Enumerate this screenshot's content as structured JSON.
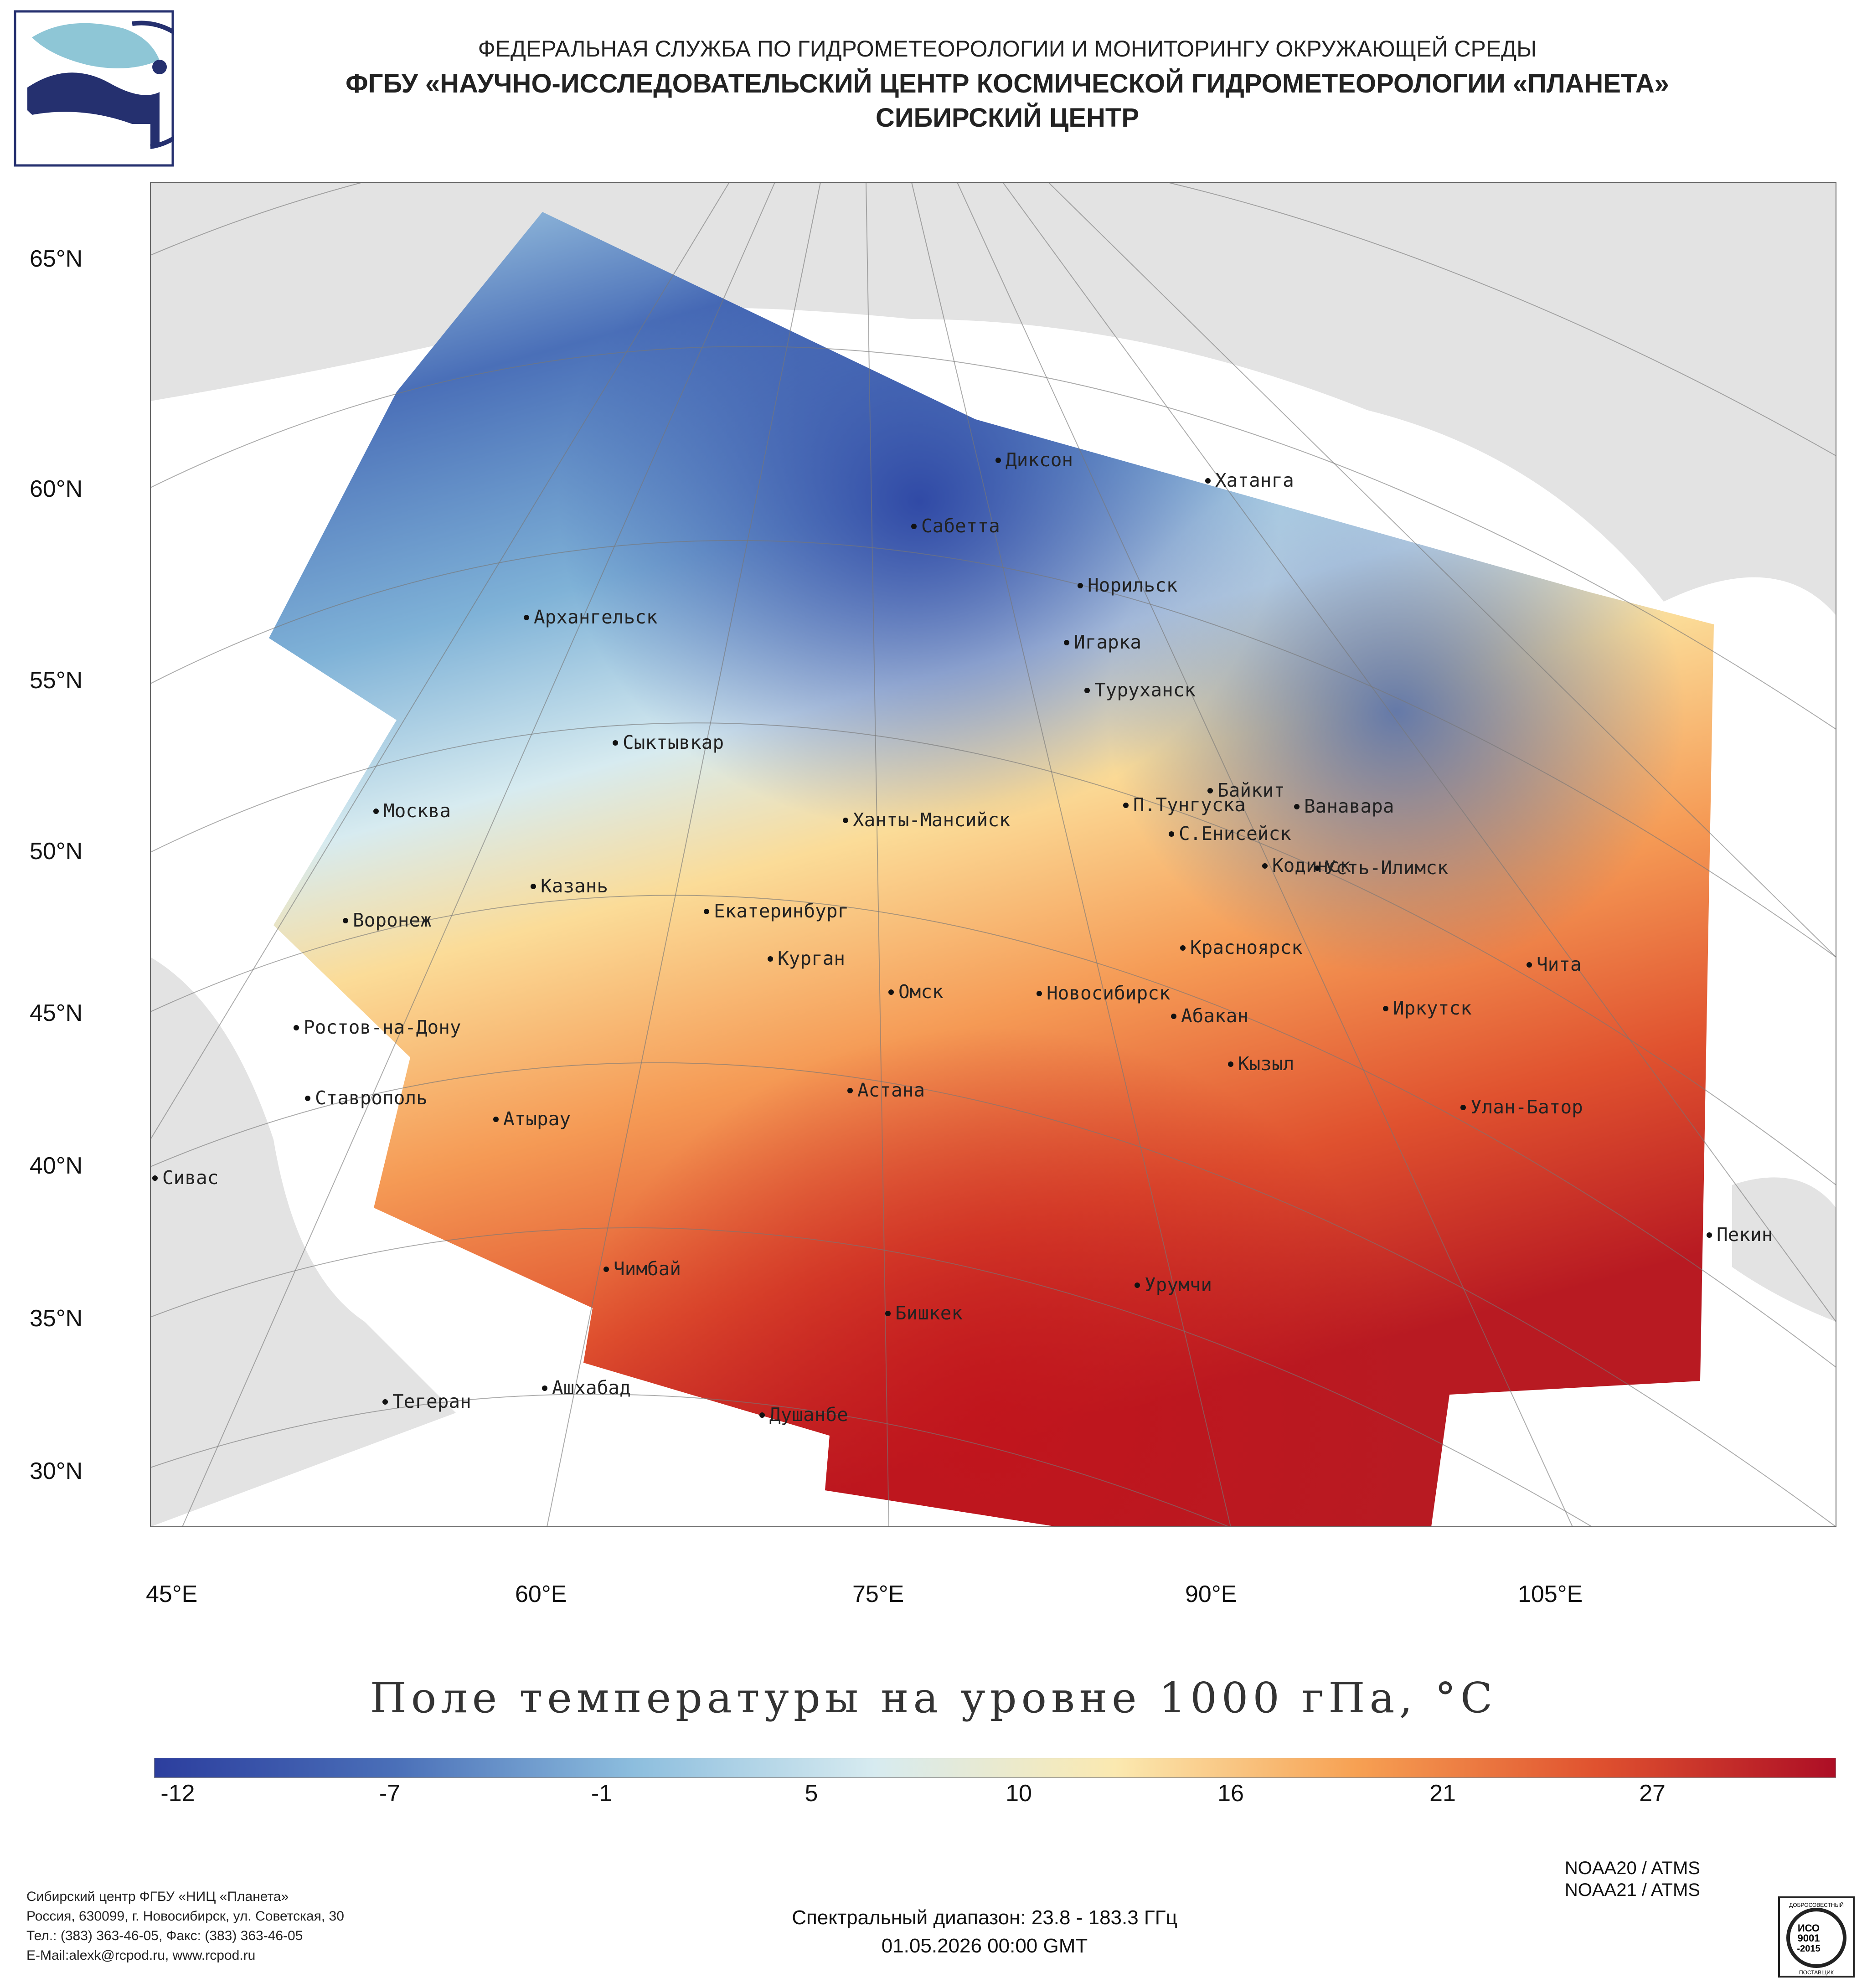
{
  "header": {
    "line1": "ФЕДЕРАЛЬНАЯ СЛУЖБА ПО ГИДРОМЕТЕОРОЛОГИИ И МОНИТОРИНГУ ОКРУЖАЮЩЕЙ СРЕДЫ",
    "line2": "ФГБУ «НАУЧНО-ИССЛЕДОВАТЕЛЬСКИЙ ЦЕНТР КОСМИЧЕСКОЙ ГИДРОМЕТЕОРОЛОГИИ «ПЛАНЕТА»",
    "line3": "СИБИРСКИЙ ЦЕНТР"
  },
  "map": {
    "title": "Поле температуры на уровне 1000 гПа, °C",
    "lat_labels": [
      "65°N",
      "60°N",
      "55°N",
      "50°N",
      "45°N",
      "40°N",
      "35°N",
      "30°N"
    ],
    "lon_labels": [
      "45°E",
      "60°E",
      "75°E",
      "90°E",
      "105°E"
    ],
    "cities": [
      "Диксон",
      "Хатанга",
      "Сабетта",
      "Норильск",
      "Архангельск",
      "Игарка",
      "Туруханск",
      "Сыктывкар",
      "Байкит",
      "Москва",
      "П.Тунгуска",
      "Ванавара",
      "Ханты-Мансийск",
      "С.Енисейск",
      "Кодинск",
      "Усть-Илимск",
      "Казань",
      "Екатеринбург",
      "Воронеж",
      "Красноярск",
      "Курган",
      "Чита",
      "Омск",
      "Новосибирск",
      "Ростов-на-Дону",
      "Иркутск",
      "Абакан",
      "Кызыл",
      "Астана",
      "Ставрополь",
      "Улан-Батор",
      "Атырау",
      "Сивас",
      "Пекин",
      "Чимбай",
      "Урумчи",
      "Бишкек",
      "Ашхабад",
      "Тегеран",
      "Душанбе"
    ],
    "colors": {
      "land": "#e3e3e3",
      "sea": "#ffffff",
      "cold": "#2c44a3",
      "warm": "#c1141c"
    }
  },
  "colorbar": {
    "ticks": [
      "-12",
      "-7",
      "-1",
      "5",
      "10",
      "16",
      "21",
      "27"
    ],
    "min": -12,
    "max": 30,
    "colors": [
      "#2c3e9e",
      "#4a6fb8",
      "#8dbede",
      "#d7ebf0",
      "#fbe9b0",
      "#f7a153",
      "#e0522f",
      "#ad0e25"
    ]
  },
  "footer": {
    "address": [
      "Сибирский центр ФГБУ «НИЦ «Планета»",
      "Россия, 630099, г. Новосибирск, ул. Советская, 30",
      "Тел.: (383) 363-46-05, Факс: (383) 363-46-05",
      "E-Mail:alexk@rcpod.ru, www.rcpod.ru"
    ],
    "spectral": "Спектральный диапазон: 23.8 - 183.3 ГГц",
    "datetime": "01.05.2026 00:00 GMT",
    "satellites": [
      "NOAA20 / ATMS",
      "NOAA21 / ATMS"
    ],
    "iso": {
      "top": "ДОБРОСОВЕСТНЫЙ",
      "mid1": "ИСО",
      "mid2": "9001",
      "mid3": "-2015",
      "bottom": "ПОСТАВЩИК"
    }
  }
}
